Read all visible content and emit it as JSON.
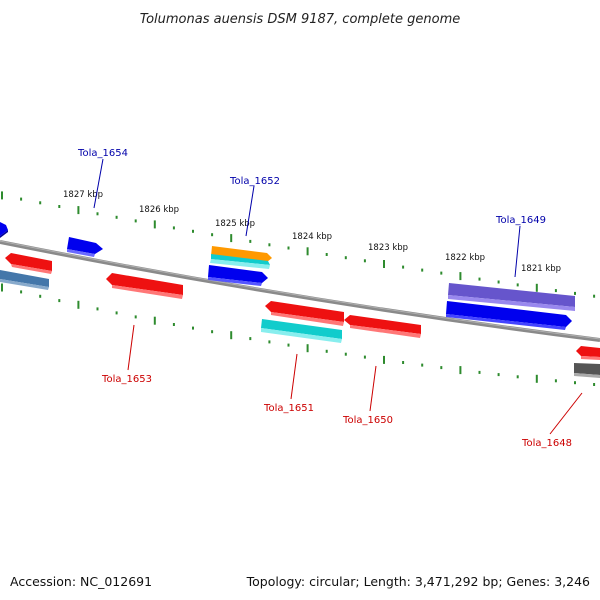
{
  "title": "Tolumonas auensis DSM 9187, complete genome",
  "footer": {
    "accession": "Accession: NC_012691",
    "summary": "Topology: circular; Length: 3,471,292 bp; Genes: 3,246"
  },
  "colors": {
    "backbone": "#808080",
    "tick": "#2e8b2e",
    "forward_label": "#0000aa",
    "reverse_label": "#cc0000",
    "red": "#ee1111",
    "blue": "#0000ee",
    "cyan": "#11cccc",
    "orange": "#ff9900",
    "steel": "#4477aa",
    "purple": "#6655cc",
    "gray": "#666666"
  },
  "kbp_labels": [
    "1827 kbp",
    "1826 kbp",
    "1825 kbp",
    "1824 kbp",
    "1823 kbp",
    "1822 kbp",
    "1821 kbp"
  ],
  "gene_labels": {
    "forward": [
      "Tola_1654",
      "Tola_1652",
      "Tola_1649"
    ],
    "reverse": [
      "Tola_1653",
      "Tola_1651",
      "Tola_1650",
      "Tola_1648"
    ]
  }
}
